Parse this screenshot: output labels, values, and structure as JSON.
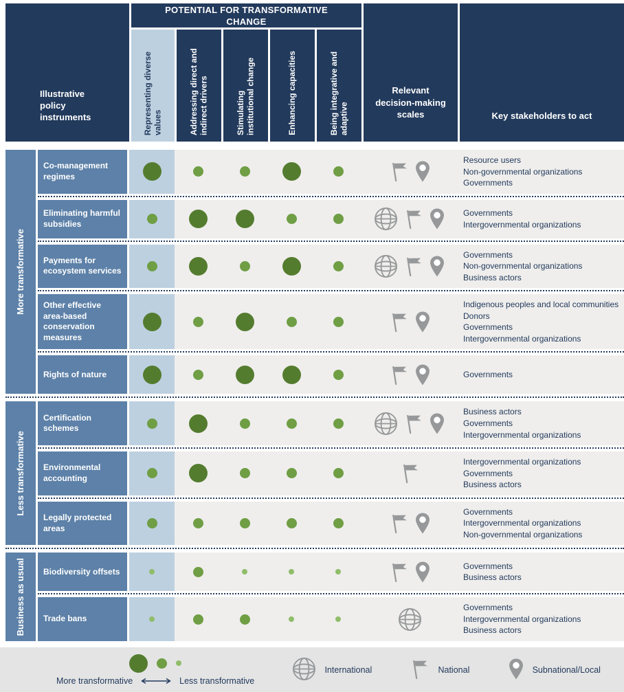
{
  "colors": {
    "navy": "#223a5c",
    "steel-blue": "#5d81a8",
    "light-blue": "#bdd0e0",
    "row-grey": "#efeeec",
    "legend-grey": "#e4e4e4",
    "icon-grey": "#96989a",
    "dot-large": "#547c2f",
    "dot-medium": "#6f9e44",
    "dot-small": "#90bd6a"
  },
  "header": {
    "instruments_label": "Illustrative policy instruments",
    "transformative_title": "POTENTIAL FOR TRANSFORMATIVE CHANGE",
    "criteria": [
      "Representing diverse values",
      "Addressing direct and indirect drivers",
      "Stimulating institutional change",
      "Enhancing capacities",
      "Being integrative and adaptive"
    ],
    "scales_label": "Relevant decision-making scales",
    "stakeholders_label": "Key stakeholders to act"
  },
  "groups": [
    {
      "label": "More transformative",
      "rows": [
        {
          "name": "Co-management regimes",
          "dots": [
            "L",
            "M",
            "M",
            "L",
            "M"
          ],
          "scales": [
            "national",
            "subnational"
          ],
          "stakeholders": [
            "Resource users",
            "Non-governmental organizations",
            "Governments"
          ]
        },
        {
          "name": "Eliminating harmful subsidies",
          "dots": [
            "M",
            "L",
            "L",
            "M",
            "M"
          ],
          "scales": [
            "international",
            "national",
            "subnational"
          ],
          "stakeholders": [
            "Governments",
            "Intergovernmental organizations"
          ]
        },
        {
          "name": "Payments for ecosystem services",
          "dots": [
            "M",
            "L",
            "M",
            "L",
            "M"
          ],
          "scales": [
            "international",
            "national",
            "subnational"
          ],
          "stakeholders": [
            "Governments",
            "Non-governmental organizations",
            "Business actors"
          ]
        },
        {
          "name": "Other effective area-based conservation measures",
          "dots": [
            "L",
            "M",
            "L",
            "M",
            "M"
          ],
          "scales": [
            "national",
            "subnational"
          ],
          "stakeholders": [
            "Indigenous peoples and local communities",
            "Donors",
            "Governments",
            "Intergovernmental organizations"
          ]
        },
        {
          "name": "Rights of nature",
          "dots": [
            "L",
            "M",
            "L",
            "L",
            "M"
          ],
          "scales": [
            "national",
            "subnational"
          ],
          "stakeholders": [
            "Governments"
          ]
        }
      ]
    },
    {
      "label": "Less transformative",
      "rows": [
        {
          "name": "Certification schemes",
          "dots": [
            "M",
            "L",
            "M",
            "M",
            "M"
          ],
          "scales": [
            "international",
            "national",
            "subnational"
          ],
          "stakeholders": [
            "Business actors",
            "Governments",
            "Intergovernmental organizations"
          ]
        },
        {
          "name": "Environmental accounting",
          "dots": [
            "M",
            "L",
            "M",
            "M",
            "M"
          ],
          "scales": [
            "national"
          ],
          "stakeholders": [
            "Intergovernmental organizations",
            "Governments",
            "Business actors"
          ]
        },
        {
          "name": "Legally protected areas",
          "dots": [
            "M",
            "M",
            "M",
            "M",
            "M"
          ],
          "scales": [
            "national",
            "subnational"
          ],
          "stakeholders": [
            "Governments",
            "Intergovernmental organizations",
            "Non-governmental organizations"
          ]
        }
      ]
    },
    {
      "label": "Business as usual",
      "rows": [
        {
          "name": "Biodiversity offsets",
          "dots": [
            "S",
            "M",
            "S",
            "S",
            "S"
          ],
          "scales": [
            "national",
            "subnational"
          ],
          "stakeholders": [
            "Governments",
            "Business actors"
          ]
        },
        {
          "name": "Trade bans",
          "dots": [
            "S",
            "M",
            "M",
            "S",
            "S"
          ],
          "scales": [
            "international"
          ],
          "stakeholders": [
            "Governments",
            "Intergovernmental organizations",
            "Business actors"
          ]
        }
      ]
    }
  ],
  "legend": {
    "more_label": "More transformative",
    "less_label": "Less transformative",
    "scale_items": [
      {
        "icon": "international",
        "label": "International"
      },
      {
        "icon": "national",
        "label": "National"
      },
      {
        "icon": "subnational",
        "label": "Subnational/Local"
      }
    ]
  }
}
